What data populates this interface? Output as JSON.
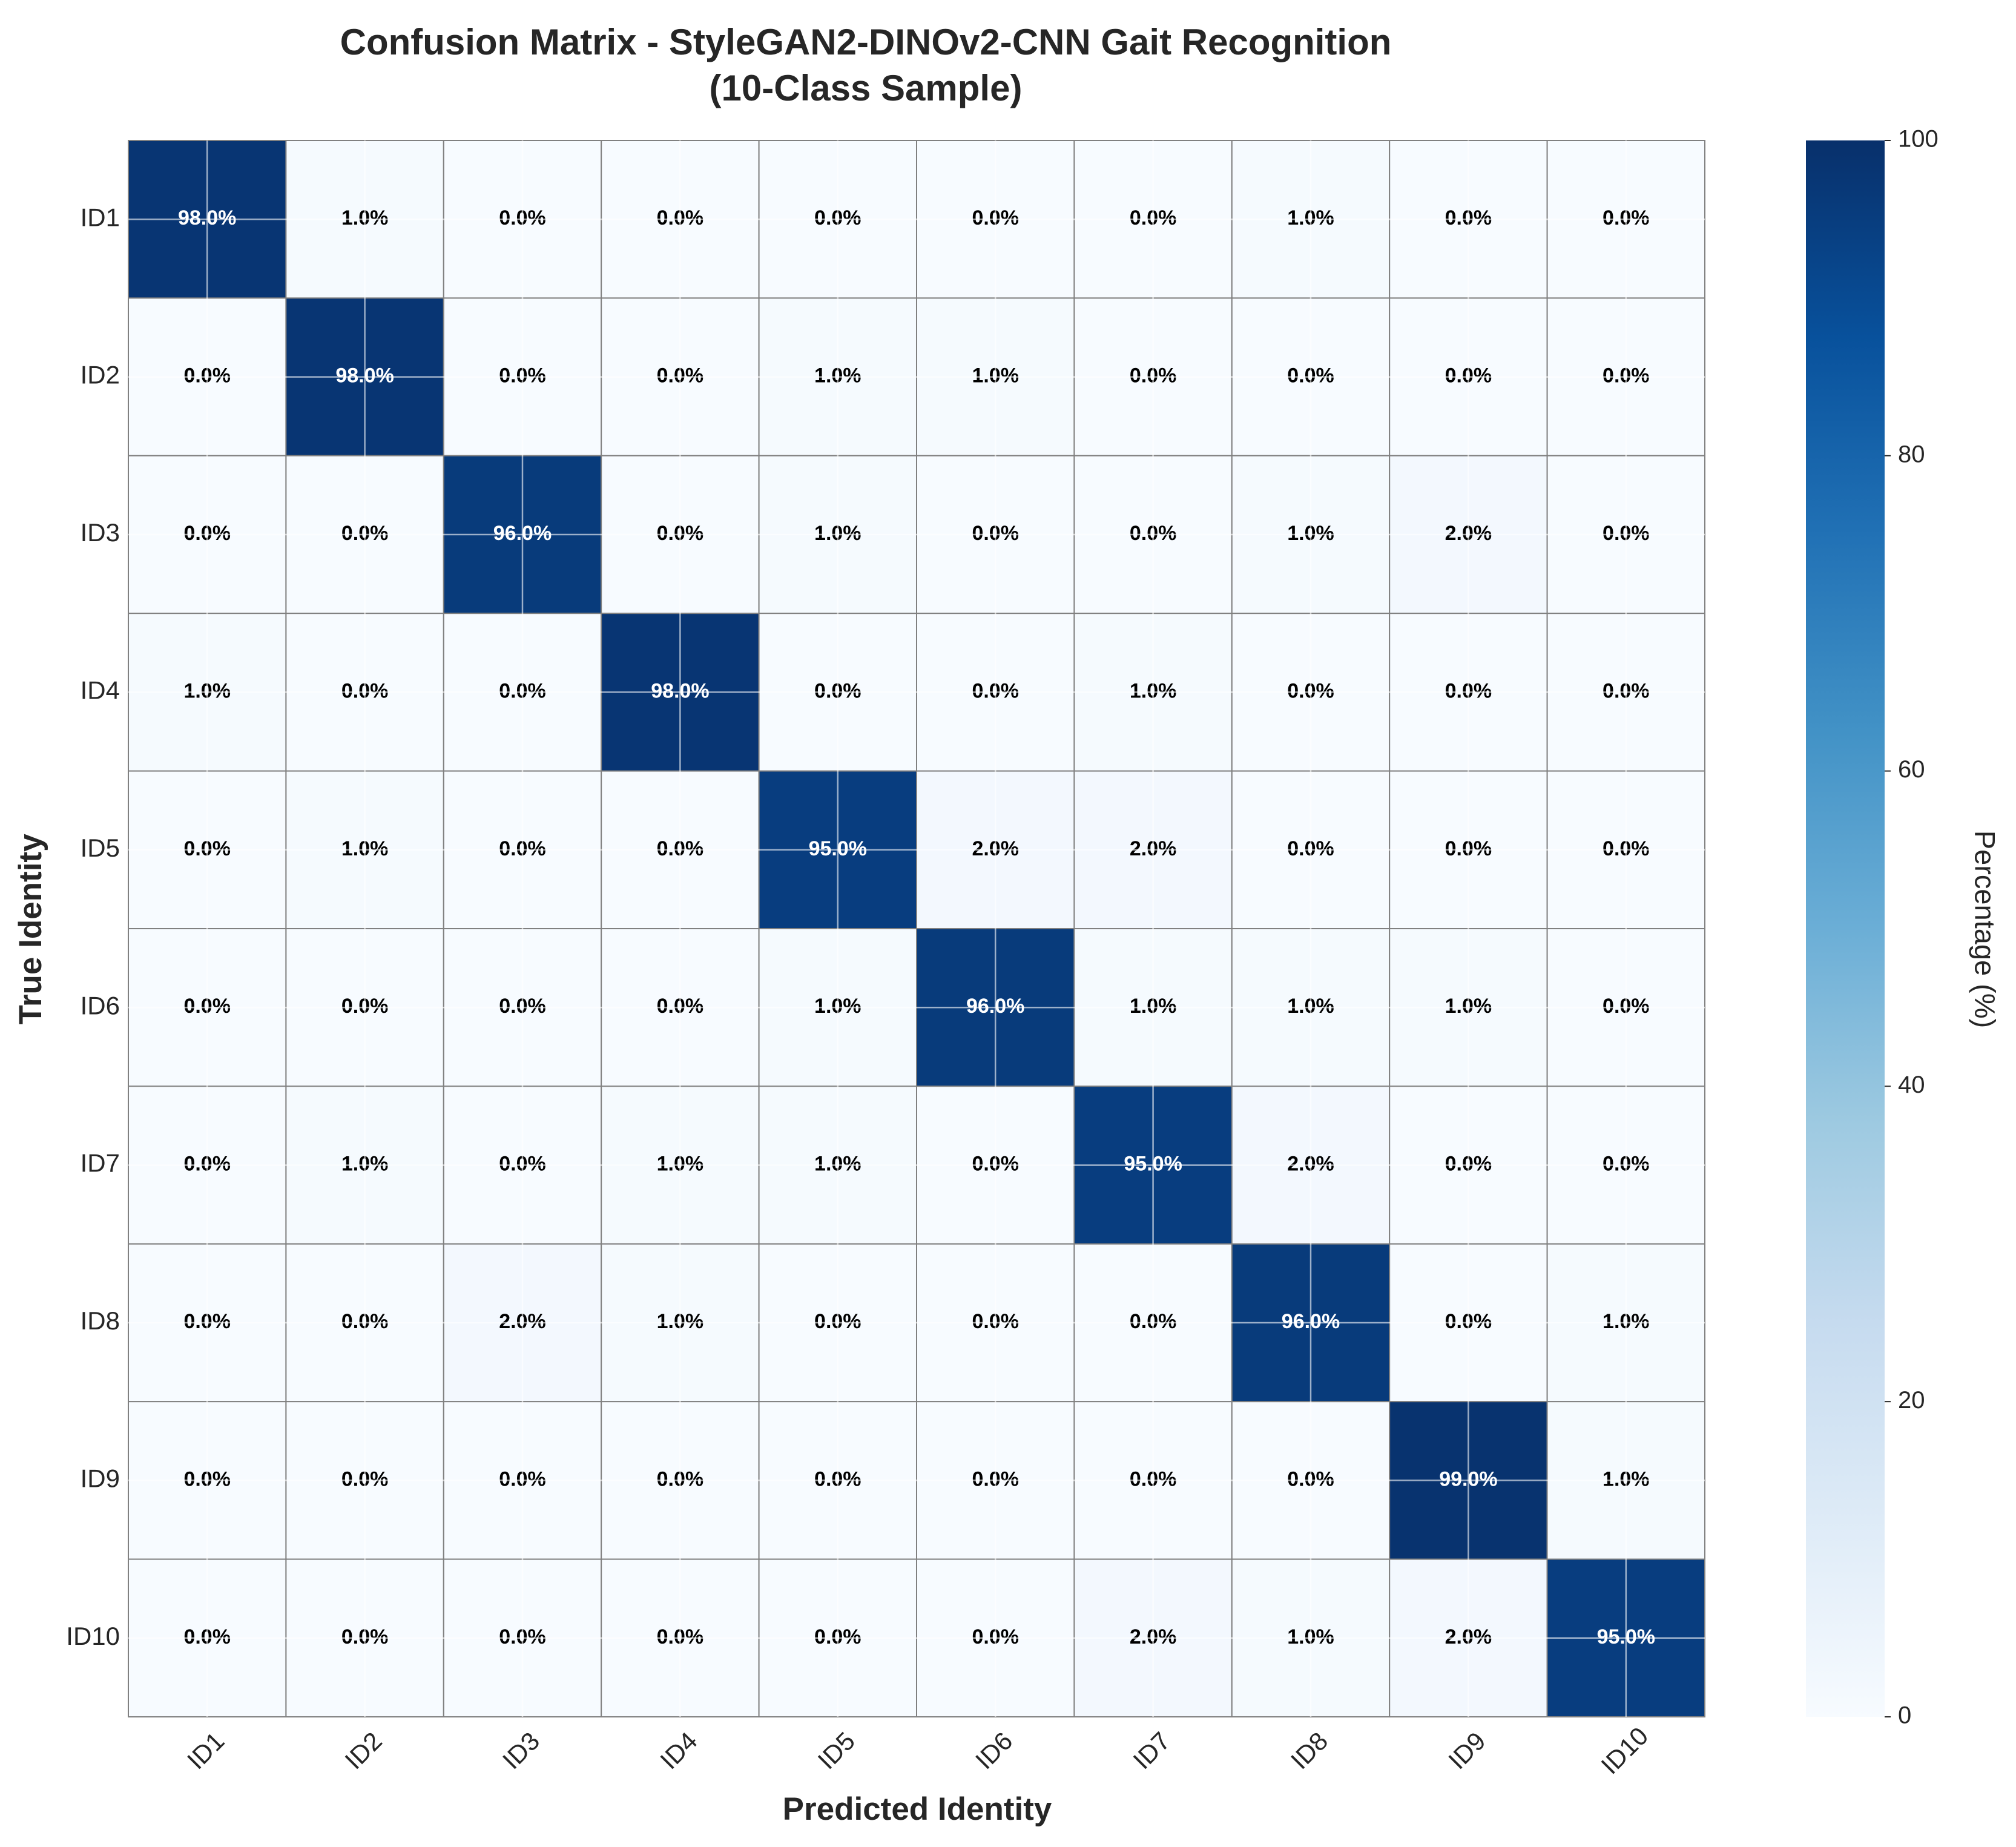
{
  "chart_data": {
    "type": "heatmap",
    "title_lines": [
      "Confusion Matrix - StyleGAN2-DINOv2-CNN Gait Recognition",
      "(10-Class Sample)"
    ],
    "xlabel": "Predicted Identity",
    "ylabel": "True Identity",
    "x_categories": [
      "ID1",
      "ID2",
      "ID3",
      "ID4",
      "ID5",
      "ID6",
      "ID7",
      "ID8",
      "ID9",
      "ID10"
    ],
    "y_categories": [
      "ID1",
      "ID2",
      "ID3",
      "ID4",
      "ID5",
      "ID6",
      "ID7",
      "ID8",
      "ID9",
      "ID10"
    ],
    "values": [
      [
        98.0,
        1.0,
        0.0,
        0.0,
        0.0,
        0.0,
        0.0,
        1.0,
        0.0,
        0.0
      ],
      [
        0.0,
        98.0,
        0.0,
        0.0,
        1.0,
        1.0,
        0.0,
        0.0,
        0.0,
        0.0
      ],
      [
        0.0,
        0.0,
        96.0,
        0.0,
        1.0,
        0.0,
        0.0,
        1.0,
        2.0,
        0.0
      ],
      [
        1.0,
        0.0,
        0.0,
        98.0,
        0.0,
        0.0,
        1.0,
        0.0,
        0.0,
        0.0
      ],
      [
        0.0,
        1.0,
        0.0,
        0.0,
        95.0,
        2.0,
        2.0,
        0.0,
        0.0,
        0.0
      ],
      [
        0.0,
        0.0,
        0.0,
        0.0,
        1.0,
        96.0,
        1.0,
        1.0,
        1.0,
        0.0
      ],
      [
        0.0,
        1.0,
        0.0,
        1.0,
        1.0,
        0.0,
        95.0,
        2.0,
        0.0,
        0.0
      ],
      [
        0.0,
        0.0,
        2.0,
        1.0,
        0.0,
        0.0,
        0.0,
        96.0,
        0.0,
        1.0
      ],
      [
        0.0,
        0.0,
        0.0,
        0.0,
        0.0,
        0.0,
        0.0,
        0.0,
        99.0,
        1.0
      ],
      [
        0.0,
        0.0,
        0.0,
        0.0,
        0.0,
        0.0,
        2.0,
        1.0,
        2.0,
        95.0
      ]
    ],
    "value_suffix": "%",
    "colorbar": {
      "label": "Percentage (%)",
      "range": [
        0,
        100
      ],
      "ticks": [
        0,
        20,
        40,
        60,
        80,
        100
      ],
      "colormap": "Blues",
      "colors": [
        "#f7fbff",
        "#deebf7",
        "#c6dbef",
        "#9ecae1",
        "#6baed6",
        "#4292c6",
        "#2171b5",
        "#08519c",
        "#08306b"
      ]
    },
    "grid": true,
    "cell_border_color": "#808080"
  }
}
